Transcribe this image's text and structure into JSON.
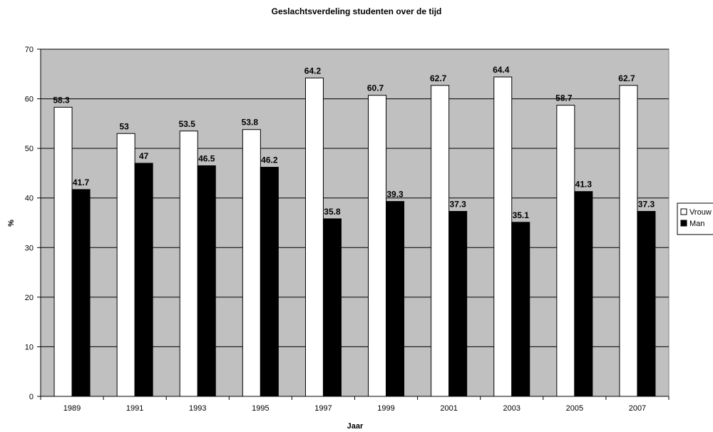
{
  "chart_data": {
    "type": "bar",
    "title": "Geslachtsverdeling studenten over de tijd",
    "xlabel": "Jaar",
    "ylabel": "%",
    "ylim": [
      0,
      70
    ],
    "yticks": [
      0,
      10,
      20,
      30,
      40,
      50,
      60,
      70
    ],
    "categories": [
      "1989",
      "1991",
      "1993",
      "1995",
      "1997",
      "1999",
      "2001",
      "2003",
      "2005",
      "2007"
    ],
    "series": [
      {
        "name": "Vrouw",
        "color": "#ffffff",
        "values": [
          58.3,
          53,
          53.5,
          53.8,
          64.2,
          60.7,
          62.7,
          64.4,
          58.7,
          62.7
        ],
        "labels": [
          "58.3",
          "53",
          "53.5",
          "53.8",
          "64.2",
          "60.7",
          "62.7",
          "64.4",
          "58.7",
          "62.7"
        ]
      },
      {
        "name": "Man",
        "color": "#000000",
        "values": [
          41.7,
          47,
          46.5,
          46.2,
          35.8,
          39.3,
          37.3,
          35.1,
          41.3,
          37.3
        ],
        "labels": [
          "41.7",
          "47",
          "46.5",
          "46.2",
          "35.8",
          "39.3",
          "37.3",
          "35.1",
          "41.3",
          "37.3"
        ]
      }
    ],
    "plot_background": "#c0c0c0",
    "grid": true,
    "legend_position": "right"
  }
}
